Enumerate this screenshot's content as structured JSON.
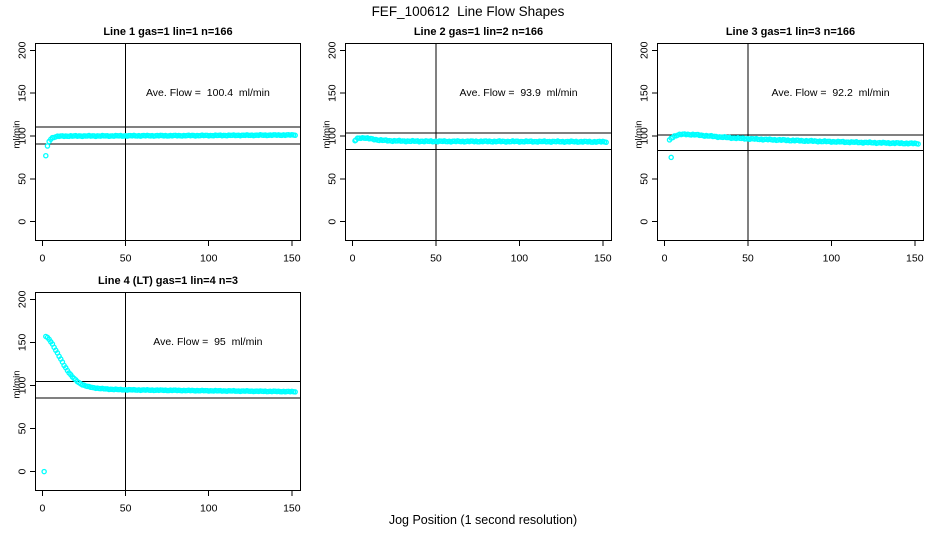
{
  "figure": {
    "title": "FEF_100612  Line Flow Shapes",
    "xlabel": "Jog Position (1 second resolution)",
    "ylabel": "ml/min",
    "background": "#ffffff",
    "line_color": "#000000",
    "point_color": "#00ffff"
  },
  "chart_data": [
    {
      "type": "scatter",
      "title": "Line 1 gas=1 lin=1 n=166",
      "annotation": "Ave. Flow =  100.4  ml/min",
      "ave_flow_ml_min": 100.4,
      "n": 166,
      "ylabel": "ml/min",
      "xlim": [
        -4.5,
        155.5
      ],
      "ylim": [
        -22.5,
        208.5
      ],
      "xticks": [
        0,
        50,
        100,
        150
      ],
      "yticks": [
        0,
        50,
        100,
        150,
        200
      ],
      "vline_x": 50,
      "hlines": [
        90.4,
        110.4
      ],
      "point_color": "#00ffff",
      "outliers": [
        [
          2,
          77
        ]
      ],
      "curve_keypoints": [
        [
          3,
          88
        ],
        [
          4,
          93.5
        ],
        [
          5,
          96.5
        ],
        [
          6,
          98
        ],
        [
          8,
          99.2
        ],
        [
          10,
          99.7
        ],
        [
          14,
          99.9
        ],
        [
          20,
          100
        ],
        [
          40,
          100.1
        ],
        [
          60,
          100.3
        ],
        [
          80,
          100.4
        ],
        [
          100,
          100.6
        ],
        [
          120,
          100.8
        ],
        [
          152,
          101.2
        ]
      ],
      "noise": 0.5,
      "x_end": 152
    },
    {
      "type": "scatter",
      "title": "Line 2 gas=1 lin=2 n=166",
      "annotation": "Ave. Flow =  93.9  ml/min",
      "ave_flow_ml_min": 93.9,
      "n": 166,
      "ylabel": "ml/min",
      "xlim": [
        -4.5,
        155.5
      ],
      "ylim": [
        -22.5,
        208.5
      ],
      "xticks": [
        0,
        50,
        100,
        150
      ],
      "yticks": [
        0,
        50,
        100,
        150,
        200
      ],
      "vline_x": 50,
      "hlines": [
        84.5,
        103.3
      ],
      "point_color": "#00ffff",
      "outliers": [
        [
          1.5,
          94.5
        ]
      ],
      "curve_keypoints": [
        [
          2,
          95.5
        ],
        [
          3,
          97
        ],
        [
          5,
          97.8
        ],
        [
          7,
          97.9
        ],
        [
          9,
          97.3
        ],
        [
          12,
          96.3
        ],
        [
          16,
          95.3
        ],
        [
          22,
          94.5
        ],
        [
          30,
          94.1
        ],
        [
          45,
          93.8
        ],
        [
          70,
          93.7
        ],
        [
          100,
          93.6
        ],
        [
          130,
          93.4
        ],
        [
          152,
          93.2
        ]
      ],
      "noise": 0.7,
      "x_end": 152
    },
    {
      "type": "scatter",
      "title": "Line 3 gas=1 lin=3 n=166",
      "annotation": "Ave. Flow =  92.2  ml/min",
      "ave_flow_ml_min": 92.2,
      "n": 166,
      "ylabel": "ml/min",
      "xlim": [
        -4.5,
        155.5
      ],
      "ylim": [
        -22.5,
        208.5
      ],
      "xticks": [
        0,
        50,
        100,
        150
      ],
      "yticks": [
        0,
        50,
        100,
        150,
        200
      ],
      "vline_x": 50,
      "hlines": [
        83.0,
        101.4
      ],
      "point_color": "#00ffff",
      "outliers": [
        [
          4,
          75
        ]
      ],
      "curve_keypoints": [
        [
          3,
          95
        ],
        [
          4,
          97.5
        ],
        [
          6,
          100
        ],
        [
          8,
          101.3
        ],
        [
          10,
          101.8
        ],
        [
          13,
          102
        ],
        [
          16,
          101.7
        ],
        [
          20,
          101.2
        ],
        [
          25,
          100.3
        ],
        [
          30,
          99.4
        ],
        [
          35,
          98.6
        ],
        [
          40,
          97.9
        ],
        [
          45,
          97.3
        ],
        [
          50,
          96.8
        ],
        [
          60,
          96
        ],
        [
          70,
          95.3
        ],
        [
          80,
          94.6
        ],
        [
          90,
          94
        ],
        [
          100,
          93.4
        ],
        [
          110,
          92.9
        ],
        [
          120,
          92.4
        ],
        [
          130,
          92
        ],
        [
          140,
          91.6
        ],
        [
          152,
          91.2
        ]
      ],
      "noise": 0.7,
      "x_end": 152
    },
    {
      "type": "scatter",
      "title": "Line 4 (LT) gas=1 lin=4 n=3",
      "annotation": "Ave. Flow =  95  ml/min",
      "ave_flow_ml_min": 95,
      "n": 3,
      "ylabel": "ml/min",
      "xlim": [
        -4.5,
        155.5
      ],
      "ylim": [
        -22.5,
        208.5
      ],
      "xticks": [
        0,
        50,
        100,
        150
      ],
      "yticks": [
        0,
        50,
        100,
        150,
        200
      ],
      "vline_x": 50,
      "hlines": [
        85.5,
        104.5
      ],
      "point_color": "#00ffff",
      "outliers": [
        [
          1,
          0
        ]
      ],
      "curve_keypoints": [
        [
          2,
          157
        ],
        [
          3,
          155.5
        ],
        [
          4,
          153.5
        ],
        [
          5,
          151
        ],
        [
          6,
          148
        ],
        [
          7,
          144.5
        ],
        [
          8,
          141
        ],
        [
          9,
          137.5
        ],
        [
          10,
          134
        ],
        [
          11,
          130.5
        ],
        [
          12,
          127
        ],
        [
          13,
          123.5
        ],
        [
          14,
          120.5
        ],
        [
          15,
          117.5
        ],
        [
          16,
          114.8
        ],
        [
          17,
          112.3
        ],
        [
          18,
          110
        ],
        [
          19,
          108
        ],
        [
          20,
          106.2
        ],
        [
          21,
          104.6
        ],
        [
          22,
          103.2
        ],
        [
          23,
          102
        ],
        [
          24,
          101
        ],
        [
          25,
          100.2
        ],
        [
          26,
          99.5
        ],
        [
          28,
          98.4
        ],
        [
          30,
          97.6
        ],
        [
          33,
          96.8
        ],
        [
          36,
          96.2
        ],
        [
          40,
          95.7
        ],
        [
          45,
          95.3
        ],
        [
          50,
          95
        ],
        [
          60,
          94.7
        ],
        [
          70,
          94.5
        ],
        [
          80,
          94.3
        ],
        [
          90,
          94.1
        ],
        [
          100,
          93.9
        ],
        [
          110,
          93.7
        ],
        [
          120,
          93.5
        ],
        [
          130,
          93.3
        ],
        [
          140,
          93.1
        ],
        [
          152,
          92.8
        ]
      ],
      "noise": 0.4,
      "x_end": 152
    }
  ]
}
